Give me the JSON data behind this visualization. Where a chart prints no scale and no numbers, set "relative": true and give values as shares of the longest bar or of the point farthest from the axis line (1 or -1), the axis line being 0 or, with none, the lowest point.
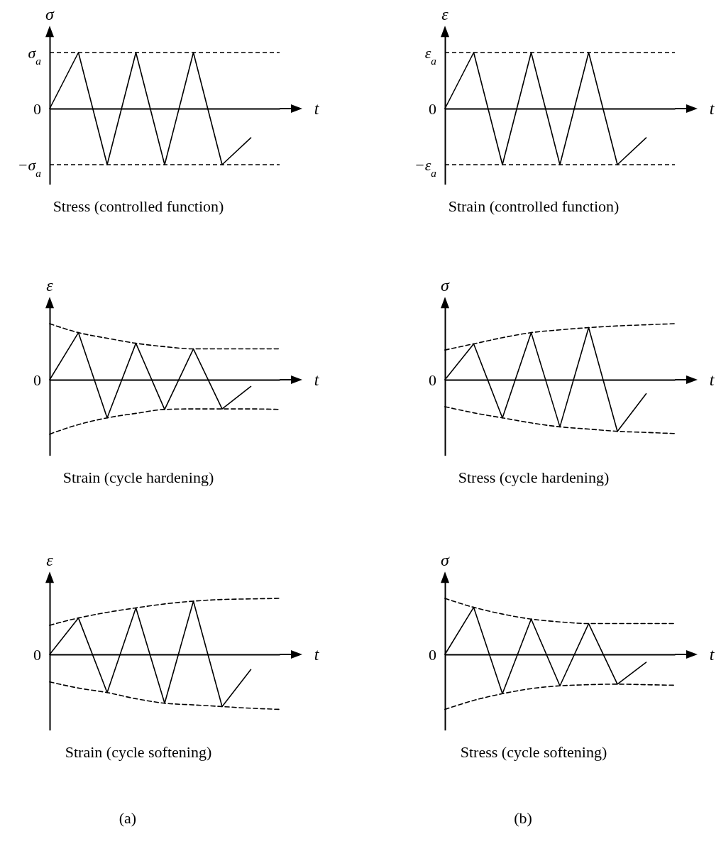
{
  "chart_data": [
    {
      "type": "line",
      "title": "Stress (controlled function)",
      "xlabel": "t",
      "ylabel": "σ",
      "relative": true,
      "categories": [
        null,
        null,
        null,
        null,
        null,
        null,
        null,
        null,
        null
      ],
      "annotations": [
        "0"
      ],
      "ref_lines": [
        {
          "axis": "y",
          "value": 1,
          "label": "σ$_{a}$",
          "color": "#000000",
          "line_style": "dashed"
        },
        {
          "axis": "y",
          "value": -1,
          "label": "−σ$_{a}$",
          "color": "#000000",
          "line_style": "dashed"
        }
      ],
      "series": [
        {
          "color": "#000000",
          "values": [
            0,
            1,
            -1,
            1,
            -1,
            1,
            -1,
            -0.52,
            null
          ]
        }
      ]
    },
    {
      "type": "line",
      "title": "Strain (controlled function)",
      "xlabel": "t",
      "ylabel": "ε",
      "relative": true,
      "categories": [
        null,
        null,
        null,
        null,
        null,
        null,
        null,
        null,
        null
      ],
      "annotations": [
        "0"
      ],
      "ref_lines": [
        {
          "axis": "y",
          "value": 1,
          "label": "ε$_{a}$",
          "color": "#000000",
          "line_style": "dashed"
        },
        {
          "axis": "y",
          "value": -1,
          "label": "−ε$_{a}$",
          "color": "#000000",
          "line_style": "dashed"
        }
      ],
      "series": [
        {
          "color": "#000000",
          "values": [
            0,
            1,
            -1,
            1,
            -1,
            1,
            -1,
            -0.52,
            null
          ]
        }
      ]
    },
    {
      "type": "line",
      "title": "Strain (cycle hardening)",
      "xlabel": "t",
      "ylabel": "ε",
      "relative": true,
      "categories": [
        null,
        null,
        null,
        null,
        null,
        null,
        null,
        null,
        null
      ],
      "annotations": [
        "0"
      ],
      "series": [
        {
          "color": "#000000",
          "values": [
            0,
            0.84,
            -0.68,
            0.65,
            -0.53,
            0.55,
            -0.52,
            -0.12,
            null
          ]
        },
        {
          "color": "#000000",
          "line_style": "dashed",
          "values": [
            1,
            0.84,
            0.74,
            0.65,
            0.59,
            0.55,
            0.55,
            0.55,
            0.55
          ]
        },
        {
          "color": "#000000",
          "line_style": "dashed",
          "values": [
            -0.97,
            -0.8,
            -0.68,
            -0.6,
            -0.53,
            -0.52,
            -0.52,
            -0.52,
            -0.53
          ]
        }
      ]
    },
    {
      "type": "line",
      "title": "Stress (cycle hardening)",
      "xlabel": "t",
      "ylabel": "σ",
      "relative": true,
      "categories": [
        null,
        null,
        null,
        null,
        null,
        null,
        null,
        null,
        null
      ],
      "annotations": [
        "0"
      ],
      "series": [
        {
          "color": "#000000",
          "values": [
            0,
            0.64,
            -0.68,
            0.84,
            -0.84,
            0.93,
            -0.92,
            -0.25,
            null
          ]
        },
        {
          "color": "#000000",
          "line_style": "dashed",
          "values": [
            0.53,
            0.64,
            0.75,
            0.84,
            0.89,
            0.93,
            0.96,
            0.98,
            1
          ]
        },
        {
          "color": "#000000",
          "line_style": "dashed",
          "values": [
            -0.48,
            -0.59,
            -0.68,
            -0.77,
            -0.84,
            -0.88,
            -0.92,
            -0.94,
            -0.96
          ]
        }
      ]
    },
    {
      "type": "line",
      "title": "Strain (cycle softening)",
      "xlabel": "t",
      "ylabel": "ε",
      "relative": true,
      "categories": [
        null,
        null,
        null,
        null,
        null,
        null,
        null,
        null,
        null
      ],
      "annotations": [
        "0",
        "(a)"
      ],
      "series": [
        {
          "color": "#000000",
          "values": [
            0,
            0.65,
            -0.68,
            0.83,
            -0.87,
            0.95,
            -0.93,
            -0.27,
            null
          ]
        },
        {
          "color": "#000000",
          "line_style": "dashed",
          "values": [
            0.52,
            0.65,
            0.75,
            0.83,
            0.9,
            0.95,
            0.98,
            0.99,
            1
          ]
        },
        {
          "color": "#000000",
          "line_style": "dashed",
          "values": [
            -0.49,
            -0.6,
            -0.68,
            -0.79,
            -0.87,
            -0.9,
            -0.93,
            -0.96,
            -0.98
          ]
        }
      ]
    },
    {
      "type": "line",
      "title": "Stress (cycle softening)",
      "xlabel": "t",
      "ylabel": "σ",
      "relative": true,
      "categories": [
        null,
        null,
        null,
        null,
        null,
        null,
        null,
        null,
        null
      ],
      "annotations": [
        "0",
        "(b)"
      ],
      "series": [
        {
          "color": "#000000",
          "values": [
            0,
            0.84,
            -0.7,
            0.63,
            -0.56,
            0.55,
            -0.53,
            -0.14,
            null
          ]
        },
        {
          "color": "#000000",
          "line_style": "dashed",
          "values": [
            1,
            0.84,
            0.72,
            0.63,
            0.58,
            0.55,
            0.55,
            0.55,
            0.55
          ]
        },
        {
          "color": "#000000",
          "line_style": "dashed",
          "values": [
            -0.98,
            -0.82,
            -0.7,
            -0.61,
            -0.56,
            -0.54,
            -0.53,
            -0.54,
            -0.55
          ]
        }
      ]
    }
  ]
}
